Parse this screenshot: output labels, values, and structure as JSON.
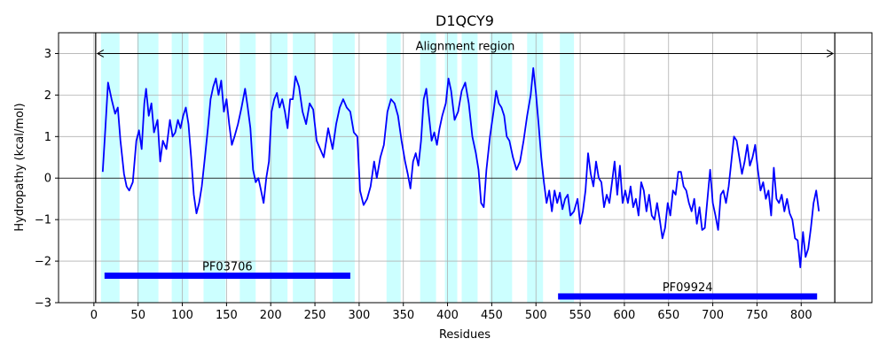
{
  "chart_data": {
    "type": "line",
    "title": "D1QCY9",
    "xlabel": "Residues",
    "ylabel": "Hydropathy (kcal/mol)",
    "xlim": [
      -40,
      880
    ],
    "ylim": [
      -3,
      3.5
    ],
    "xticks": [
      0,
      50,
      100,
      150,
      200,
      250,
      300,
      350,
      400,
      450,
      500,
      550,
      600,
      650,
      700,
      750,
      800
    ],
    "yticks": [
      -3,
      -2,
      -1,
      0,
      1,
      2,
      3
    ],
    "grid": true,
    "colors": {
      "line": "#0000ff",
      "band": "#ccffff",
      "domain": "#0000ff",
      "grid": "#b0b0b0"
    },
    "vlines": [
      2,
      838
    ],
    "alignment_region": {
      "label": "Alignment region",
      "x_start": 2,
      "x_end": 838,
      "y": 3.0
    },
    "bands": [
      [
        8,
        29
      ],
      [
        49,
        73
      ],
      [
        88,
        107
      ],
      [
        124,
        149
      ],
      [
        165,
        183
      ],
      [
        199,
        219
      ],
      [
        225,
        250
      ],
      [
        270,
        295
      ],
      [
        331,
        347
      ],
      [
        369,
        387
      ],
      [
        397,
        411
      ],
      [
        416,
        434
      ],
      [
        448,
        473
      ],
      [
        490,
        508
      ],
      [
        527,
        543
      ]
    ],
    "domains": [
      {
        "name": "PF03706",
        "x_start": 12,
        "x_end": 290,
        "y": -2.35
      },
      {
        "name": "PF09924",
        "x_start": 525,
        "x_end": 818,
        "y": -2.85
      }
    ],
    "series": [
      {
        "points": [
          [
            10,
            0.15
          ],
          [
            13,
            1.2
          ],
          [
            16,
            2.3
          ],
          [
            20,
            1.9
          ],
          [
            24,
            1.55
          ],
          [
            27,
            1.7
          ],
          [
            30,
            0.9
          ],
          [
            34,
            0.1
          ],
          [
            37,
            -0.2
          ],
          [
            40,
            -0.3
          ],
          [
            44,
            -0.1
          ],
          [
            48,
            0.9
          ],
          [
            51,
            1.15
          ],
          [
            54,
            0.7
          ],
          [
            57,
            1.8
          ],
          [
            59,
            2.15
          ],
          [
            62,
            1.5
          ],
          [
            65,
            1.8
          ],
          [
            68,
            1.1
          ],
          [
            72,
            1.4
          ],
          [
            75,
            0.4
          ],
          [
            78,
            0.9
          ],
          [
            82,
            0.7
          ],
          [
            86,
            1.4
          ],
          [
            89,
            1.0
          ],
          [
            92,
            1.1
          ],
          [
            95,
            1.4
          ],
          [
            98,
            1.2
          ],
          [
            101,
            1.5
          ],
          [
            104,
            1.7
          ],
          [
            107,
            1.3
          ],
          [
            110,
            0.5
          ],
          [
            113,
            -0.4
          ],
          [
            116,
            -0.85
          ],
          [
            119,
            -0.6
          ],
          [
            122,
            -0.2
          ],
          [
            126,
            0.6
          ],
          [
            129,
            1.2
          ],
          [
            132,
            1.9
          ],
          [
            135,
            2.2
          ],
          [
            138,
            2.4
          ],
          [
            141,
            2.0
          ],
          [
            144,
            2.35
          ],
          [
            147,
            1.6
          ],
          [
            150,
            1.9
          ],
          [
            153,
            1.3
          ],
          [
            156,
            0.8
          ],
          [
            159,
            1.0
          ],
          [
            163,
            1.3
          ],
          [
            167,
            1.7
          ],
          [
            171,
            2.15
          ],
          [
            174,
            1.7
          ],
          [
            177,
            1.2
          ],
          [
            180,
            0.2
          ],
          [
            183,
            -0.1
          ],
          [
            186,
            0.0
          ],
          [
            189,
            -0.3
          ],
          [
            192,
            -0.6
          ],
          [
            195,
            0.0
          ],
          [
            198,
            0.4
          ],
          [
            201,
            1.6
          ],
          [
            204,
            1.9
          ],
          [
            207,
            2.05
          ],
          [
            210,
            1.7
          ],
          [
            213,
            1.9
          ],
          [
            216,
            1.6
          ],
          [
            219,
            1.2
          ],
          [
            222,
            1.9
          ],
          [
            225,
            1.9
          ],
          [
            228,
            2.45
          ],
          [
            232,
            2.2
          ],
          [
            236,
            1.6
          ],
          [
            240,
            1.3
          ],
          [
            244,
            1.8
          ],
          [
            248,
            1.65
          ],
          [
            252,
            0.9
          ],
          [
            256,
            0.7
          ],
          [
            260,
            0.5
          ],
          [
            265,
            1.2
          ],
          [
            270,
            0.7
          ],
          [
            274,
            1.3
          ],
          [
            278,
            1.7
          ],
          [
            282,
            1.9
          ],
          [
            286,
            1.7
          ],
          [
            290,
            1.6
          ],
          [
            294,
            1.1
          ],
          [
            298,
            1.0
          ],
          [
            301,
            -0.3
          ],
          [
            305,
            -0.65
          ],
          [
            309,
            -0.5
          ],
          [
            313,
            -0.2
          ],
          [
            317,
            0.4
          ],
          [
            320,
            0.0
          ],
          [
            324,
            0.5
          ],
          [
            328,
            0.8
          ],
          [
            332,
            1.6
          ],
          [
            336,
            1.9
          ],
          [
            340,
            1.8
          ],
          [
            344,
            1.5
          ],
          [
            348,
            0.9
          ],
          [
            352,
            0.4
          ],
          [
            355,
            0.1
          ],
          [
            358,
            -0.25
          ],
          [
            361,
            0.4
          ],
          [
            364,
            0.6
          ],
          [
            367,
            0.3
          ],
          [
            370,
            0.9
          ],
          [
            373,
            1.9
          ],
          [
            376,
            2.15
          ],
          [
            379,
            1.5
          ],
          [
            382,
            0.9
          ],
          [
            385,
            1.1
          ],
          [
            388,
            0.8
          ],
          [
            391,
            1.2
          ],
          [
            394,
            1.5
          ],
          [
            398,
            1.8
          ],
          [
            401,
            2.4
          ],
          [
            404,
            2.1
          ],
          [
            408,
            1.4
          ],
          [
            412,
            1.6
          ],
          [
            416,
            2.1
          ],
          [
            420,
            2.3
          ],
          [
            424,
            1.8
          ],
          [
            428,
            1.0
          ],
          [
            432,
            0.6
          ],
          [
            435,
            0.2
          ],
          [
            438,
            -0.6
          ],
          [
            441,
            -0.7
          ],
          [
            444,
            0.2
          ],
          [
            448,
            1.0
          ],
          [
            452,
            1.6
          ],
          [
            455,
            2.1
          ],
          [
            458,
            1.8
          ],
          [
            461,
            1.7
          ],
          [
            464,
            1.5
          ],
          [
            467,
            1.0
          ],
          [
            470,
            0.9
          ],
          [
            474,
            0.5
          ],
          [
            478,
            0.2
          ],
          [
            482,
            0.4
          ],
          [
            486,
            0.9
          ],
          [
            490,
            1.5
          ],
          [
            494,
            2.0
          ],
          [
            497,
            2.65
          ],
          [
            500,
            2.05
          ],
          [
            503,
            1.3
          ],
          [
            506,
            0.5
          ],
          [
            509,
            -0.1
          ],
          [
            512,
            -0.6
          ],
          [
            515,
            -0.3
          ],
          [
            518,
            -0.8
          ],
          [
            521,
            -0.3
          ],
          [
            524,
            -0.6
          ],
          [
            527,
            -0.35
          ],
          [
            530,
            -0.75
          ],
          [
            533,
            -0.5
          ],
          [
            536,
            -0.4
          ],
          [
            539,
            -0.9
          ],
          [
            543,
            -0.8
          ],
          [
            547,
            -0.5
          ],
          [
            550,
            -1.1
          ],
          [
            553,
            -0.8
          ],
          [
            556,
            -0.3
          ],
          [
            559,
            0.6
          ],
          [
            562,
            0.1
          ],
          [
            565,
            -0.2
          ],
          [
            568,
            0.4
          ],
          [
            571,
            0.0
          ],
          [
            574,
            -0.1
          ],
          [
            577,
            -0.7
          ],
          [
            580,
            -0.4
          ],
          [
            583,
            -0.6
          ],
          [
            586,
            -0.1
          ],
          [
            589,
            0.4
          ],
          [
            592,
            -0.4
          ],
          [
            595,
            0.3
          ],
          [
            598,
            -0.6
          ],
          [
            601,
            -0.3
          ],
          [
            604,
            -0.6
          ],
          [
            607,
            -0.2
          ],
          [
            610,
            -0.7
          ],
          [
            613,
            -0.5
          ],
          [
            616,
            -0.9
          ],
          [
            619,
            -0.1
          ],
          [
            622,
            -0.3
          ],
          [
            625,
            -0.8
          ],
          [
            628,
            -0.4
          ],
          [
            631,
            -0.9
          ],
          [
            634,
            -1.0
          ],
          [
            637,
            -0.6
          ],
          [
            640,
            -1.0
          ],
          [
            643,
            -1.45
          ],
          [
            646,
            -1.2
          ],
          [
            649,
            -0.6
          ],
          [
            652,
            -0.9
          ],
          [
            655,
            -0.3
          ],
          [
            658,
            -0.4
          ],
          [
            661,
            0.15
          ],
          [
            664,
            0.15
          ],
          [
            667,
            -0.2
          ],
          [
            670,
            -0.3
          ],
          [
            673,
            -0.6
          ],
          [
            676,
            -0.8
          ],
          [
            679,
            -0.5
          ],
          [
            682,
            -1.1
          ],
          [
            685,
            -0.7
          ],
          [
            688,
            -1.25
          ],
          [
            691,
            -1.2
          ],
          [
            694,
            -0.5
          ],
          [
            697,
            0.2
          ],
          [
            700,
            -0.6
          ],
          [
            703,
            -0.9
          ],
          [
            706,
            -1.25
          ],
          [
            709,
            -0.4
          ],
          [
            712,
            -0.3
          ],
          [
            715,
            -0.6
          ],
          [
            718,
            -0.2
          ],
          [
            721,
            0.4
          ],
          [
            724,
            1.0
          ],
          [
            727,
            0.9
          ],
          [
            730,
            0.5
          ],
          [
            733,
            0.1
          ],
          [
            736,
            0.4
          ],
          [
            739,
            0.8
          ],
          [
            742,
            0.3
          ],
          [
            745,
            0.5
          ],
          [
            748,
            0.8
          ],
          [
            751,
            0.2
          ],
          [
            754,
            -0.3
          ],
          [
            757,
            -0.1
          ],
          [
            760,
            -0.5
          ],
          [
            763,
            -0.3
          ],
          [
            766,
            -0.9
          ],
          [
            769,
            0.25
          ],
          [
            772,
            -0.5
          ],
          [
            775,
            -0.6
          ],
          [
            778,
            -0.4
          ],
          [
            781,
            -0.8
          ],
          [
            784,
            -0.5
          ],
          [
            787,
            -0.85
          ],
          [
            790,
            -1.0
          ],
          [
            793,
            -1.45
          ],
          [
            796,
            -1.5
          ],
          [
            799,
            -2.15
          ],
          [
            802,
            -1.3
          ],
          [
            805,
            -1.9
          ],
          [
            808,
            -1.7
          ],
          [
            811,
            -1.2
          ],
          [
            814,
            -0.6
          ],
          [
            817,
            -0.3
          ],
          [
            820,
            -0.8
          ]
        ]
      }
    ]
  }
}
